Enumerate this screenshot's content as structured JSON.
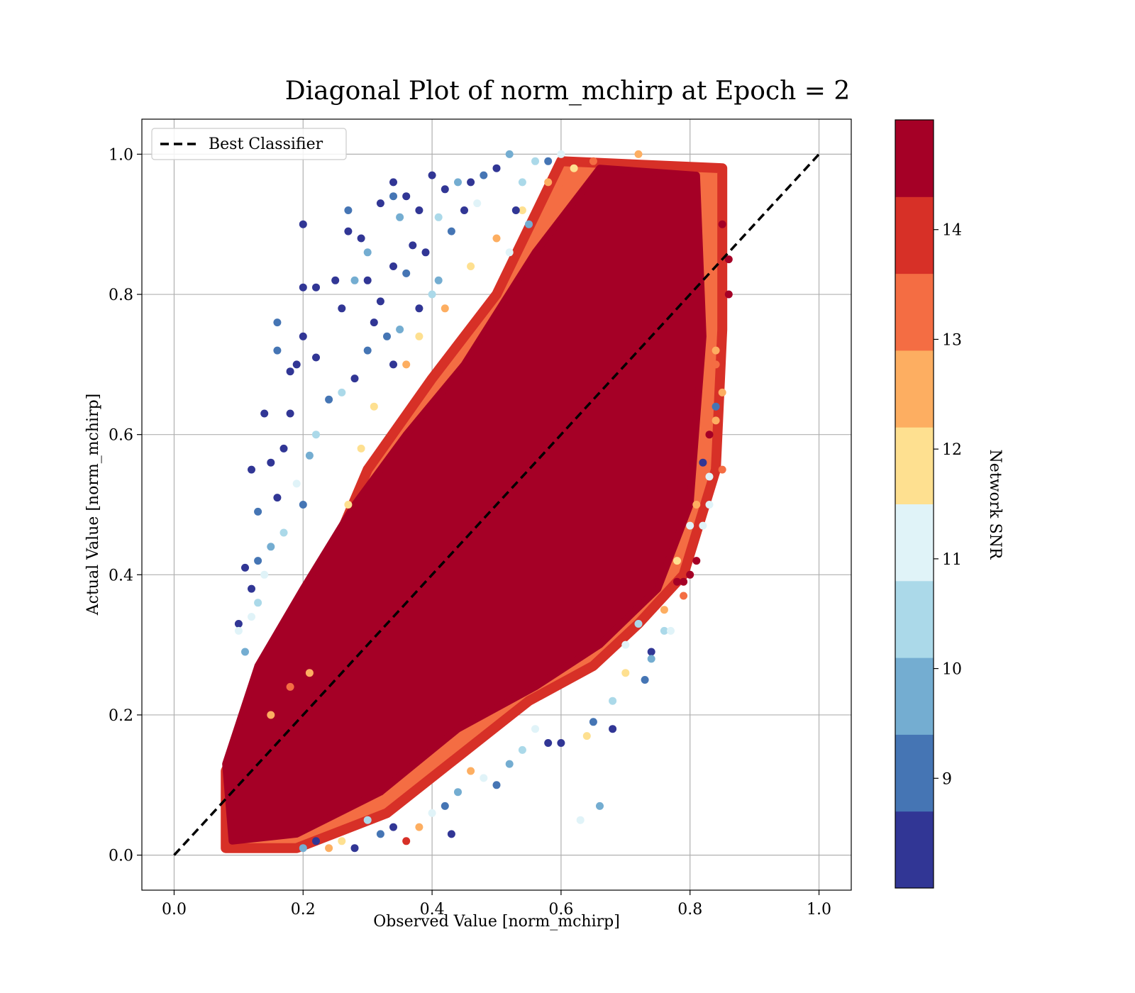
{
  "chart_data": {
    "type": "scatter",
    "title": "Diagonal Plot of norm_mchirp at Epoch = 2",
    "xlabel": "Observed Value [norm_mchirp]",
    "ylabel": "Actual Value [norm_mchirp]",
    "xlim": [
      -0.05,
      1.05
    ],
    "ylim": [
      -0.05,
      1.05
    ],
    "xticks": [
      "0.0",
      "0.2",
      "0.4",
      "0.6",
      "0.8",
      "1.0"
    ],
    "yticks": [
      "0.0",
      "0.2",
      "0.4",
      "0.6",
      "0.8",
      "1.0"
    ],
    "grid": true,
    "legend": {
      "placement": "upper-left",
      "entries": [
        "Best Classifier"
      ]
    },
    "reference_line": {
      "name": "Best Classifier",
      "x": [
        0,
        1
      ],
      "y": [
        0,
        1
      ],
      "style": "dashed",
      "color": "#000000"
    },
    "colorbar": {
      "label": "Network SNR",
      "range": [
        8.0,
        15.0
      ],
      "ticks": [
        "9",
        "10",
        "11",
        "12",
        "13",
        "14"
      ],
      "tick_values": [
        9,
        10,
        11,
        12,
        13,
        14
      ],
      "levels": [
        {
          "from": 8.0,
          "to": 8.7,
          "color": "#313695"
        },
        {
          "from": 8.7,
          "to": 9.4,
          "color": "#4575b4"
        },
        {
          "from": 9.4,
          "to": 10.1,
          "color": "#74add1"
        },
        {
          "from": 10.1,
          "to": 10.8,
          "color": "#abd9e9"
        },
        {
          "from": 10.8,
          "to": 11.5,
          "color": "#e0f3f8"
        },
        {
          "from": 11.5,
          "to": 12.2,
          "color": "#fee090"
        },
        {
          "from": 12.2,
          "to": 12.9,
          "color": "#fdae61"
        },
        {
          "from": 12.9,
          "to": 13.6,
          "color": "#f46d43"
        },
        {
          "from": 13.6,
          "to": 14.3,
          "color": "#d73027"
        },
        {
          "from": 14.3,
          "to": 15.0,
          "color": "#a50026"
        }
      ]
    },
    "dense_region": {
      "description_color": "#a50026",
      "outline": [
        [
          0.08,
          0.01
        ],
        [
          0.19,
          0.01
        ],
        [
          0.33,
          0.06
        ],
        [
          0.44,
          0.14
        ],
        [
          0.55,
          0.22
        ],
        [
          0.65,
          0.27
        ],
        [
          0.72,
          0.33
        ],
        [
          0.79,
          0.4
        ],
        [
          0.84,
          0.55
        ],
        [
          0.85,
          0.75
        ],
        [
          0.85,
          0.98
        ],
        [
          0.6,
          0.99
        ],
        [
          0.5,
          0.8
        ],
        [
          0.4,
          0.68
        ],
        [
          0.3,
          0.55
        ],
        [
          0.24,
          0.42
        ],
        [
          0.17,
          0.3
        ],
        [
          0.08,
          0.12
        ]
      ],
      "core": [
        [
          0.09,
          0.02
        ],
        [
          0.19,
          0.03
        ],
        [
          0.32,
          0.09
        ],
        [
          0.44,
          0.18
        ],
        [
          0.56,
          0.24
        ],
        [
          0.66,
          0.3
        ],
        [
          0.75,
          0.38
        ],
        [
          0.8,
          0.5
        ],
        [
          0.82,
          0.74
        ],
        [
          0.81,
          0.97
        ],
        [
          0.66,
          0.98
        ],
        [
          0.56,
          0.86
        ],
        [
          0.45,
          0.7
        ],
        [
          0.36,
          0.6
        ],
        [
          0.28,
          0.5
        ],
        [
          0.2,
          0.38
        ],
        [
          0.13,
          0.27
        ],
        [
          0.08,
          0.13
        ]
      ]
    },
    "series": [
      {
        "name": "predictions",
        "points": [
          [
            0.2,
            0.9,
            8.2
          ],
          [
            0.2,
            0.81,
            8.2
          ],
          [
            0.22,
            0.81,
            8.3
          ],
          [
            0.25,
            0.82,
            8.4
          ],
          [
            0.26,
            0.78,
            8.3
          ],
          [
            0.2,
            0.74,
            8.2
          ],
          [
            0.16,
            0.76,
            9.0
          ],
          [
            0.16,
            0.72,
            9.0
          ],
          [
            0.18,
            0.69,
            8.4
          ],
          [
            0.19,
            0.7,
            8.2
          ],
          [
            0.22,
            0.71,
            8.3
          ],
          [
            0.14,
            0.63,
            8.2
          ],
          [
            0.18,
            0.63,
            8.3
          ],
          [
            0.12,
            0.55,
            8.4
          ],
          [
            0.15,
            0.56,
            8.3
          ],
          [
            0.17,
            0.58,
            8.6
          ],
          [
            0.13,
            0.49,
            9.0
          ],
          [
            0.16,
            0.51,
            8.3
          ],
          [
            0.11,
            0.41,
            8.5
          ],
          [
            0.13,
            0.42,
            9.0
          ],
          [
            0.12,
            0.38,
            8.4
          ],
          [
            0.1,
            0.33,
            8.3
          ],
          [
            0.11,
            0.29,
            9.5
          ],
          [
            0.1,
            0.32,
            11.0
          ],
          [
            0.27,
            0.92,
            9.0
          ],
          [
            0.27,
            0.89,
            8.3
          ],
          [
            0.29,
            0.88,
            8.4
          ],
          [
            0.3,
            0.86,
            9.5
          ],
          [
            0.32,
            0.93,
            8.3
          ],
          [
            0.34,
            0.96,
            8.2
          ],
          [
            0.34,
            0.94,
            9.0
          ],
          [
            0.35,
            0.91,
            9.7
          ],
          [
            0.36,
            0.94,
            8.3
          ],
          [
            0.38,
            0.92,
            8.4
          ],
          [
            0.37,
            0.87,
            8.3
          ],
          [
            0.36,
            0.83,
            9.0
          ],
          [
            0.3,
            0.82,
            8.2
          ],
          [
            0.28,
            0.82,
            9.7
          ],
          [
            0.32,
            0.79,
            8.4
          ],
          [
            0.34,
            0.84,
            8.3
          ],
          [
            0.31,
            0.76,
            8.2
          ],
          [
            0.33,
            0.74,
            9.0
          ],
          [
            0.4,
            0.97,
            8.2
          ],
          [
            0.42,
            0.95,
            8.3
          ],
          [
            0.44,
            0.96,
            9.5
          ],
          [
            0.46,
            0.96,
            8.4
          ],
          [
            0.48,
            0.97,
            9.0
          ],
          [
            0.5,
            0.98,
            8.3
          ],
          [
            0.52,
            1.0,
            9.7
          ],
          [
            0.41,
            0.91,
            10.5
          ],
          [
            0.43,
            0.89,
            9.0
          ],
          [
            0.45,
            0.92,
            8.3
          ],
          [
            0.47,
            0.93,
            11.0
          ],
          [
            0.39,
            0.86,
            8.3
          ],
          [
            0.41,
            0.82,
            9.5
          ],
          [
            0.38,
            0.78,
            8.2
          ],
          [
            0.4,
            0.8,
            10.5
          ],
          [
            0.35,
            0.75,
            9.5
          ],
          [
            0.34,
            0.7,
            8.3
          ],
          [
            0.3,
            0.72,
            9.0
          ],
          [
            0.28,
            0.68,
            8.5
          ],
          [
            0.26,
            0.66,
            10.3
          ],
          [
            0.24,
            0.65,
            9.0
          ],
          [
            0.22,
            0.6,
            10.5
          ],
          [
            0.21,
            0.57,
            9.5
          ],
          [
            0.19,
            0.53,
            10.8
          ],
          [
            0.2,
            0.5,
            9.0
          ],
          [
            0.17,
            0.46,
            10.3
          ],
          [
            0.15,
            0.44,
            9.8
          ],
          [
            0.14,
            0.4,
            10.8
          ],
          [
            0.13,
            0.36,
            10.5
          ],
          [
            0.12,
            0.34,
            11.0
          ],
          [
            0.15,
            0.2,
            12.5
          ],
          [
            0.18,
            0.24,
            13.5
          ],
          [
            0.21,
            0.26,
            12.8
          ],
          [
            0.27,
            0.5,
            11.5
          ],
          [
            0.29,
            0.58,
            12.0
          ],
          [
            0.31,
            0.64,
            11.8
          ],
          [
            0.36,
            0.7,
            12.3
          ],
          [
            0.38,
            0.74,
            11.5
          ],
          [
            0.42,
            0.78,
            12.5
          ],
          [
            0.46,
            0.84,
            11.8
          ],
          [
            0.5,
            0.88,
            12.6
          ],
          [
            0.54,
            0.92,
            12.0
          ],
          [
            0.58,
            0.96,
            12.4
          ],
          [
            0.62,
            0.98,
            11.9
          ],
          [
            0.6,
            0.96,
            13.2
          ],
          [
            0.65,
            0.99,
            13.4
          ],
          [
            0.72,
            1.0,
            12.2
          ],
          [
            0.56,
            0.99,
            10.5
          ],
          [
            0.54,
            0.96,
            10.3
          ],
          [
            0.53,
            0.92,
            8.5
          ],
          [
            0.55,
            0.9,
            9.5
          ],
          [
            0.52,
            0.86,
            10.8
          ],
          [
            0.58,
            0.99,
            9.0
          ],
          [
            0.6,
            1.0,
            11.0
          ],
          [
            0.85,
            0.9,
            14.6
          ],
          [
            0.86,
            0.85,
            14.5
          ],
          [
            0.86,
            0.8,
            14.6
          ],
          [
            0.85,
            0.76,
            13.8
          ],
          [
            0.84,
            0.7,
            13.3
          ],
          [
            0.85,
            0.66,
            12.2
          ],
          [
            0.84,
            0.62,
            12.5
          ],
          [
            0.83,
            0.6,
            14.6
          ],
          [
            0.85,
            0.55,
            13.1
          ],
          [
            0.83,
            0.5,
            11.2
          ],
          [
            0.82,
            0.47,
            11.0
          ],
          [
            0.8,
            0.4,
            14.6
          ],
          [
            0.78,
            0.39,
            14.5
          ],
          [
            0.76,
            0.35,
            12.8
          ],
          [
            0.76,
            0.32,
            10.5
          ],
          [
            0.77,
            0.32,
            11.4
          ],
          [
            0.74,
            0.29,
            8.3
          ],
          [
            0.73,
            0.25,
            9.0
          ],
          [
            0.7,
            0.26,
            11.5
          ],
          [
            0.68,
            0.22,
            10.5
          ],
          [
            0.68,
            0.18,
            8.5
          ],
          [
            0.65,
            0.19,
            9.0
          ],
          [
            0.64,
            0.17,
            12.0
          ],
          [
            0.6,
            0.16,
            8.3
          ],
          [
            0.58,
            0.16,
            8.2
          ],
          [
            0.56,
            0.18,
            10.8
          ],
          [
            0.54,
            0.15,
            10.5
          ],
          [
            0.52,
            0.13,
            9.5
          ],
          [
            0.5,
            0.1,
            9.0
          ],
          [
            0.48,
            0.11,
            11.0
          ],
          [
            0.46,
            0.12,
            12.2
          ],
          [
            0.44,
            0.09,
            9.5
          ],
          [
            0.42,
            0.07,
            9.0
          ],
          [
            0.43,
            0.03,
            8.3
          ],
          [
            0.4,
            0.06,
            11.0
          ],
          [
            0.38,
            0.04,
            12.3
          ],
          [
            0.36,
            0.02,
            13.8
          ],
          [
            0.34,
            0.04,
            8.5
          ],
          [
            0.32,
            0.03,
            9.0
          ],
          [
            0.3,
            0.05,
            10.5
          ],
          [
            0.28,
            0.01,
            8.3
          ],
          [
            0.26,
            0.02,
            11.5
          ],
          [
            0.24,
            0.01,
            12.4
          ],
          [
            0.22,
            0.02,
            8.2
          ],
          [
            0.2,
            0.01,
            9.8
          ],
          [
            0.66,
            0.07,
            9.5
          ],
          [
            0.63,
            0.05,
            11.2
          ],
          [
            0.72,
            0.33,
            10.5
          ],
          [
            0.7,
            0.3,
            11.3
          ],
          [
            0.74,
            0.28,
            9.8
          ],
          [
            0.78,
            0.42,
            12.0
          ],
          [
            0.8,
            0.47,
            11.3
          ],
          [
            0.81,
            0.5,
            12.5
          ],
          [
            0.82,
            0.56,
            8.6
          ],
          [
            0.81,
            0.42,
            14.6
          ],
          [
            0.79,
            0.39,
            14.5
          ],
          [
            0.84,
            0.72,
            12.5
          ],
          [
            0.84,
            0.64,
            9.0
          ],
          [
            0.83,
            0.54,
            11.0
          ],
          [
            0.79,
            0.37,
            13.0
          ]
        ]
      }
    ]
  }
}
